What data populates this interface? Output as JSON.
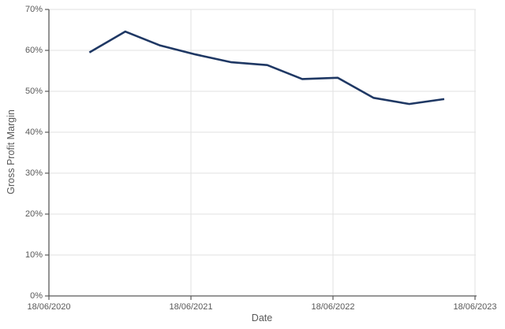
{
  "chart_data": {
    "type": "line",
    "title": "",
    "xlabel": "Date",
    "ylabel": "Gross Profit Margin",
    "grid": true,
    "legend": false,
    "x_axis": {
      "start_date": "2020-06-18",
      "end_date": "2023-06-18",
      "tick_dates": [
        "2020-06-18",
        "2021-06-18",
        "2022-06-18",
        "2023-06-18"
      ],
      "tick_labels": [
        "18/06/2020",
        "18/06/2021",
        "18/06/2022",
        "18/06/2023"
      ]
    },
    "y_axis": {
      "min": 0,
      "max": 70,
      "step": 10,
      "tick_labels": [
        "0%",
        "10%",
        "20%",
        "30%",
        "40%",
        "50%",
        "60%",
        "70%"
      ]
    },
    "series": [
      {
        "name": "Gross Profit Margin",
        "color": "#1f3864",
        "points": [
          {
            "date": "2020-09-30",
            "value": 59.5
          },
          {
            "date": "2020-12-31",
            "value": 64.6
          },
          {
            "date": "2021-03-31",
            "value": 61.2
          },
          {
            "date": "2021-06-30",
            "value": 59.0
          },
          {
            "date": "2021-09-30",
            "value": 57.1
          },
          {
            "date": "2021-12-31",
            "value": 56.4
          },
          {
            "date": "2022-03-31",
            "value": 53.0
          },
          {
            "date": "2022-06-30",
            "value": 53.3
          },
          {
            "date": "2022-09-30",
            "value": 48.4
          },
          {
            "date": "2022-12-31",
            "value": 46.9
          },
          {
            "date": "2023-03-31",
            "value": 48.1
          }
        ]
      }
    ],
    "colors": {
      "axis": "#595959",
      "gridline": "#e2e2e2",
      "text": "#595959",
      "background": "#ffffff"
    }
  }
}
